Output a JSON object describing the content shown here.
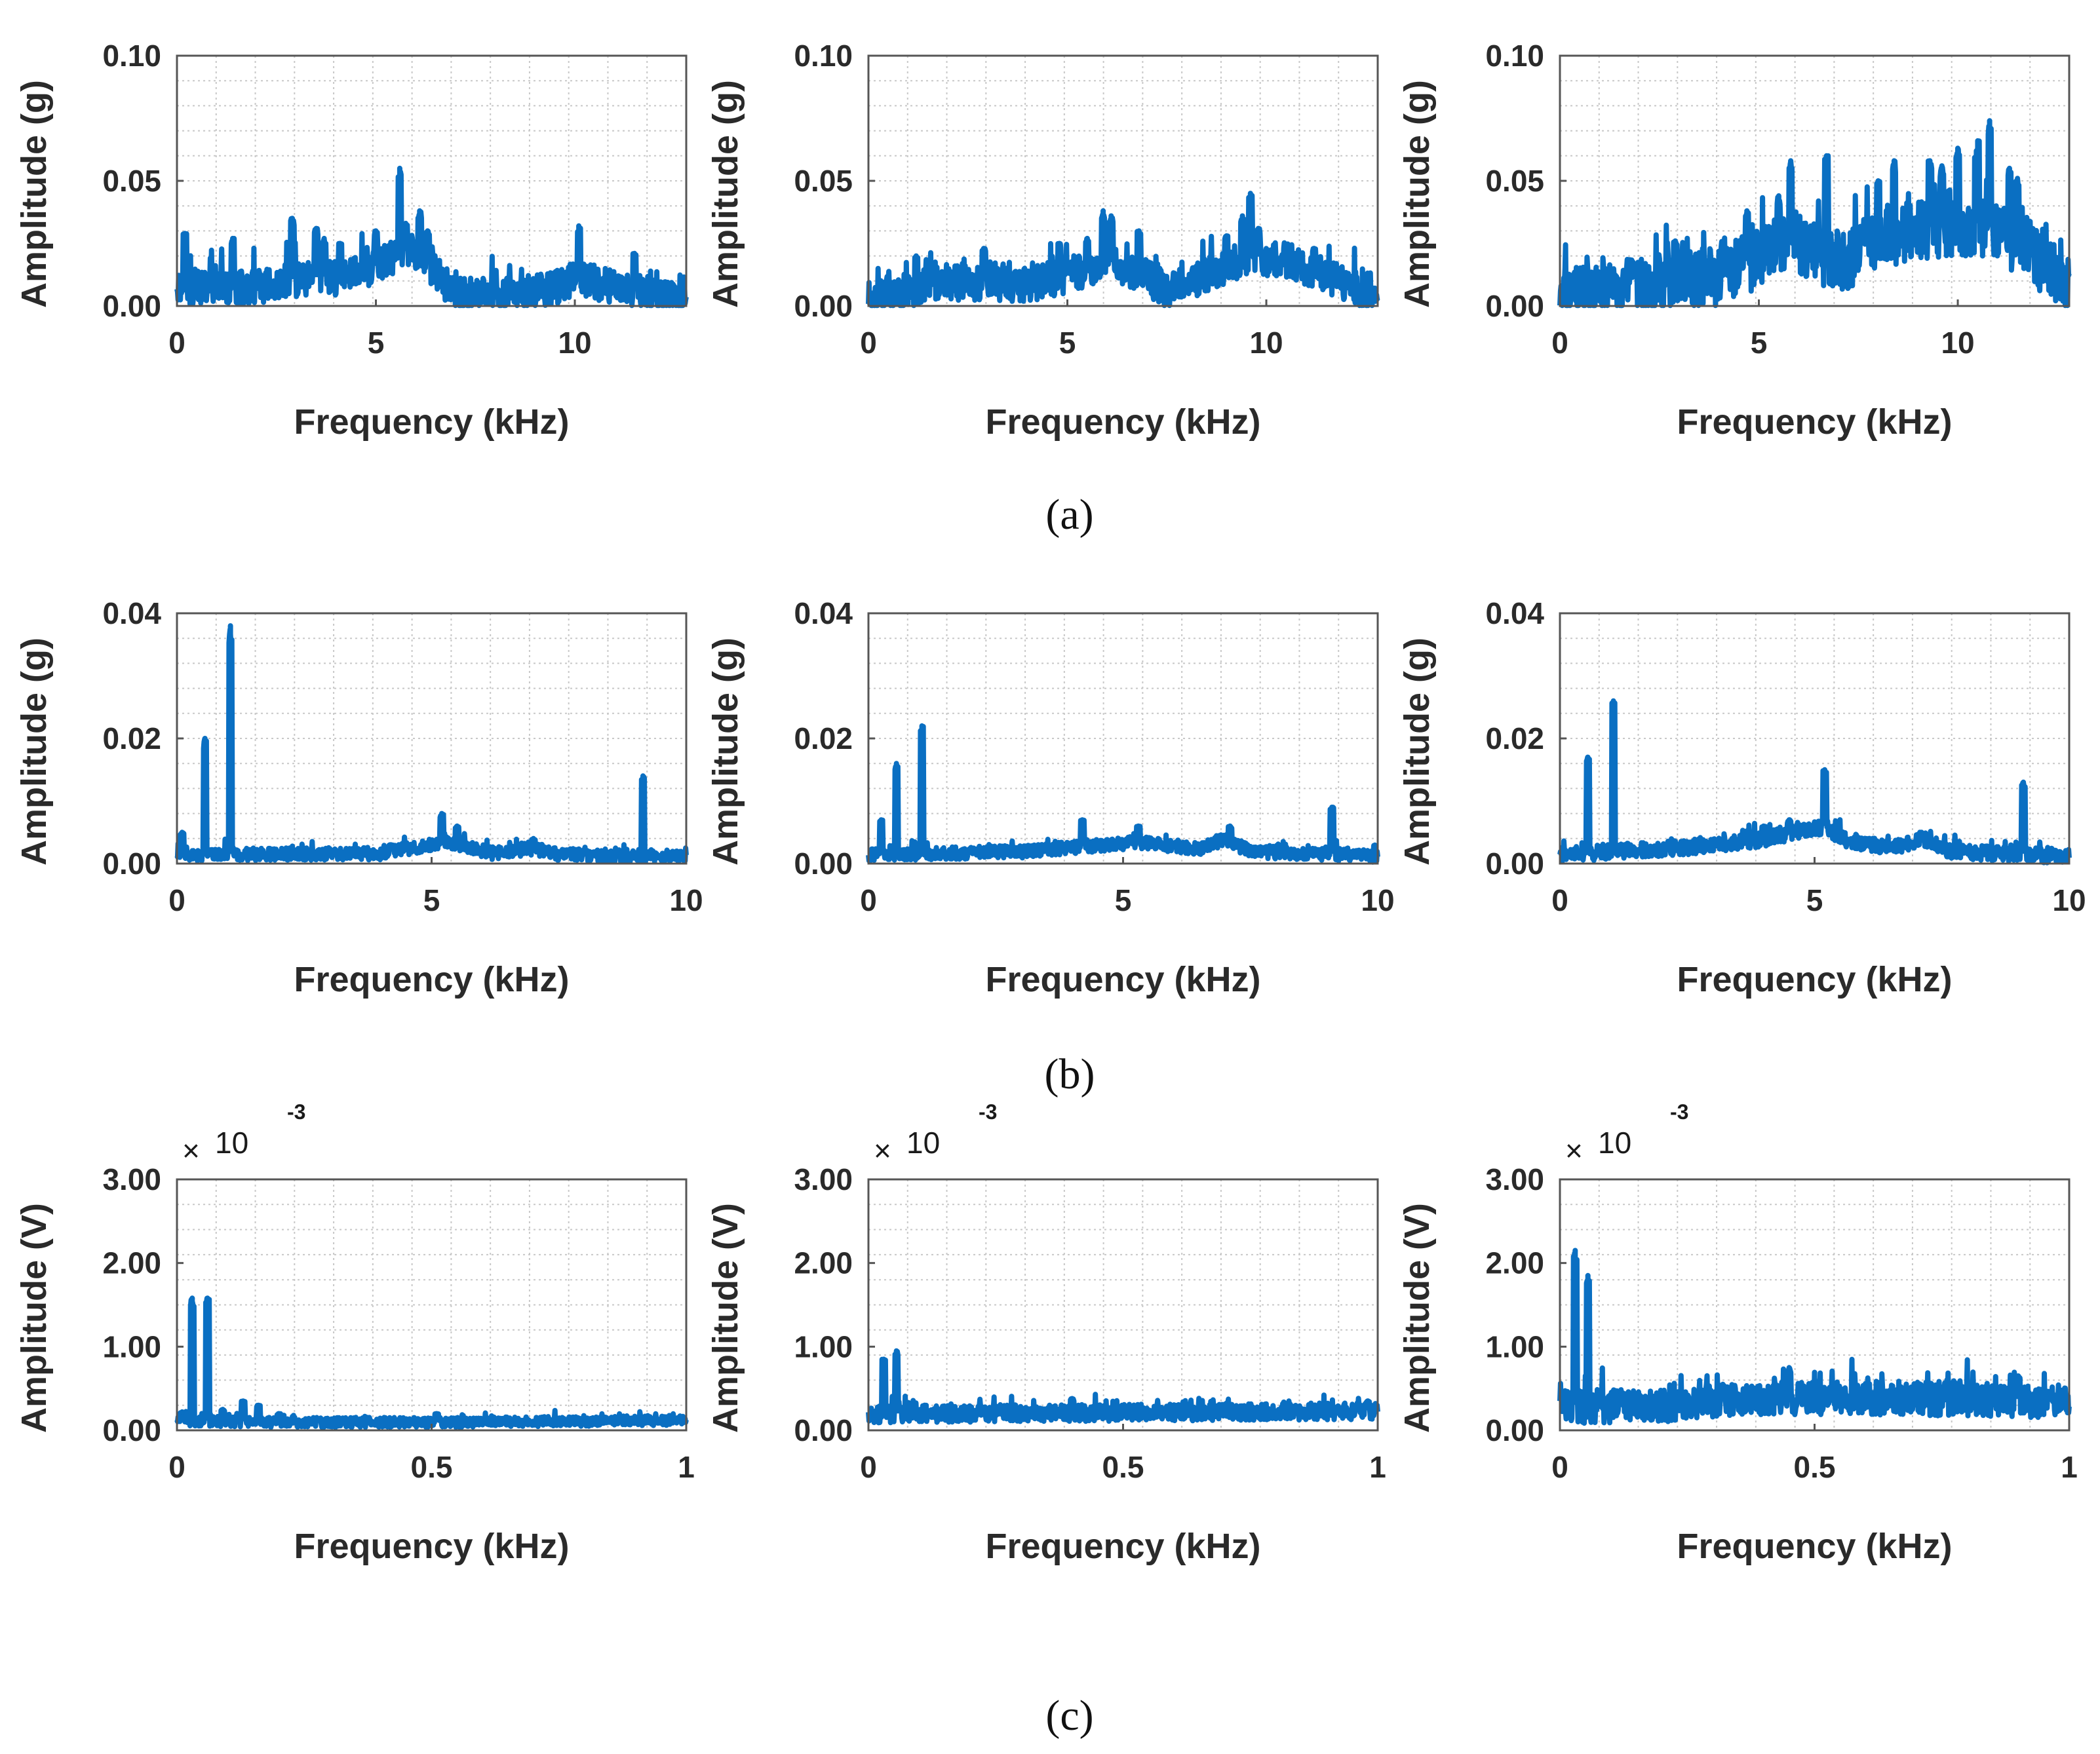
{
  "figure": {
    "panel_labels": [
      "(a)",
      "(b)",
      "(c)"
    ],
    "line_color": "#0a6fc2",
    "grid_color": "#c8c8c8",
    "axis_color": "#555555"
  },
  "chart_data": [
    {
      "id": "a1",
      "row": 0,
      "col": 0,
      "type": "line",
      "xlabel": "Frequency (kHz)",
      "ylabel": "Amplitude (g)",
      "xlim": [
        0,
        12.8
      ],
      "ylim": [
        0,
        0.1
      ],
      "xticks": [
        0,
        5,
        10
      ],
      "xtick_labels": [
        "0",
        "5",
        "10"
      ],
      "yticks": [
        0,
        0.05,
        0.1
      ],
      "ytick_labels": [
        "0.00",
        "0.05",
        "0.10"
      ],
      "baseline": [
        [
          0,
          0.008
        ],
        [
          2,
          0.008
        ],
        [
          3,
          0.011
        ],
        [
          4,
          0.012
        ],
        [
          5,
          0.016
        ],
        [
          5.6,
          0.022
        ],
        [
          6,
          0.022
        ],
        [
          6.6,
          0.012
        ],
        [
          7,
          0.005
        ],
        [
          8.5,
          0.005
        ],
        [
          9.5,
          0.008
        ],
        [
          10,
          0.012
        ],
        [
          10.5,
          0.01
        ],
        [
          11.5,
          0.007
        ],
        [
          12.3,
          0.004
        ],
        [
          12.8,
          0.003
        ]
      ],
      "noise": 0.007,
      "peaks": [
        [
          0.2,
          0.029
        ],
        [
          1.4,
          0.027
        ],
        [
          2.9,
          0.035
        ],
        [
          3.5,
          0.031
        ],
        [
          3.7,
          0.027
        ],
        [
          4.1,
          0.025
        ],
        [
          5.0,
          0.03
        ],
        [
          5.6,
          0.055
        ],
        [
          5.75,
          0.033
        ],
        [
          6.1,
          0.038
        ],
        [
          6.3,
          0.03
        ],
        [
          10.1,
          0.032
        ],
        [
          11.5,
          0.021
        ]
      ]
    },
    {
      "id": "a2",
      "row": 0,
      "col": 1,
      "type": "line",
      "xlabel": "Frequency (kHz)",
      "ylabel": "Amplitude (g)",
      "xlim": [
        0,
        12.8
      ],
      "ylim": [
        0,
        0.1
      ],
      "xticks": [
        0,
        5,
        10
      ],
      "xtick_labels": [
        "0",
        "5",
        "10"
      ],
      "yticks": [
        0,
        0.05,
        0.1
      ],
      "ytick_labels": [
        "0.00",
        "0.05",
        "0.10"
      ],
      "baseline": [
        [
          0,
          0.004
        ],
        [
          1,
          0.005
        ],
        [
          1.5,
          0.01
        ],
        [
          3,
          0.01
        ],
        [
          4,
          0.009
        ],
        [
          5,
          0.013
        ],
        [
          6,
          0.018
        ],
        [
          6.8,
          0.014
        ],
        [
          7.5,
          0.007
        ],
        [
          8.5,
          0.013
        ],
        [
          9.5,
          0.02
        ],
        [
          10.5,
          0.019
        ],
        [
          11.5,
          0.013
        ],
        [
          12.3,
          0.007
        ],
        [
          12.8,
          0.004
        ]
      ],
      "noise": 0.007,
      "peaks": [
        [
          1.2,
          0.02
        ],
        [
          2.9,
          0.023
        ],
        [
          4.8,
          0.025
        ],
        [
          5.5,
          0.027
        ],
        [
          5.9,
          0.038
        ],
        [
          6.1,
          0.036
        ],
        [
          6.8,
          0.03
        ],
        [
          9.0,
          0.028
        ],
        [
          9.4,
          0.036
        ],
        [
          9.6,
          0.045
        ],
        [
          9.8,
          0.031
        ],
        [
          11.2,
          0.023
        ]
      ]
    },
    {
      "id": "a3",
      "row": 0,
      "col": 2,
      "type": "line",
      "xlabel": "Frequency (kHz)",
      "ylabel": "Amplitude (g)",
      "xlim": [
        0,
        12.8
      ],
      "ylim": [
        0,
        0.1
      ],
      "xticks": [
        0,
        5,
        10
      ],
      "xtick_labels": [
        "0",
        "5",
        "10"
      ],
      "yticks": [
        0,
        0.05,
        0.1
      ],
      "ytick_labels": [
        "0.00",
        "0.05",
        "0.10"
      ],
      "baseline": [
        [
          0,
          0.004
        ],
        [
          1,
          0.006
        ],
        [
          2.5,
          0.01
        ],
        [
          4,
          0.013
        ],
        [
          5,
          0.02
        ],
        [
          5.8,
          0.028
        ],
        [
          6.5,
          0.022
        ],
        [
          7.2,
          0.018
        ],
        [
          8,
          0.028
        ],
        [
          9,
          0.032
        ],
        [
          10,
          0.033
        ],
        [
          10.8,
          0.033
        ],
        [
          11.5,
          0.026
        ],
        [
          12.3,
          0.015
        ],
        [
          12.8,
          0.01
        ]
      ],
      "noise": 0.012,
      "peaks": [
        [
          2.9,
          0.026
        ],
        [
          4.7,
          0.038
        ],
        [
          5.5,
          0.044
        ],
        [
          5.8,
          0.058
        ],
        [
          6.7,
          0.06
        ],
        [
          8.0,
          0.05
        ],
        [
          8.4,
          0.058
        ],
        [
          9.3,
          0.058
        ],
        [
          9.6,
          0.056
        ],
        [
          10.0,
          0.063
        ],
        [
          10.5,
          0.066
        ],
        [
          10.8,
          0.074
        ],
        [
          11.3,
          0.055
        ],
        [
          11.5,
          0.051
        ]
      ]
    },
    {
      "id": "b1",
      "row": 1,
      "col": 0,
      "type": "line",
      "xlabel": "Frequency (kHz)",
      "ylabel": "Amplitude (g)",
      "xlim": [
        0,
        10
      ],
      "ylim": [
        0,
        0.04
      ],
      "xticks": [
        0,
        5,
        10
      ],
      "xtick_labels": [
        "0",
        "5",
        "10"
      ],
      "yticks": [
        0,
        0.02,
        0.04
      ],
      "ytick_labels": [
        "0.00",
        "0.02",
        "0.04"
      ],
      "baseline": [
        [
          0,
          0.0015
        ],
        [
          4,
          0.0017
        ],
        [
          5.2,
          0.0035
        ],
        [
          5.6,
          0.003
        ],
        [
          6.2,
          0.0017
        ],
        [
          7,
          0.0025
        ],
        [
          7.5,
          0.0015
        ],
        [
          10,
          0.0013
        ]
      ],
      "noise": 0.001,
      "peaks": [
        [
          0.1,
          0.005
        ],
        [
          0.55,
          0.02
        ],
        [
          1.05,
          0.038
        ],
        [
          4.2,
          0.003
        ],
        [
          5.2,
          0.008
        ],
        [
          5.5,
          0.006
        ],
        [
          7.0,
          0.004
        ],
        [
          9.15,
          0.014
        ]
      ]
    },
    {
      "id": "b2",
      "row": 1,
      "col": 1,
      "type": "line",
      "xlabel": "Frequency (kHz)",
      "ylabel": "Amplitude (g)",
      "xlim": [
        0,
        10
      ],
      "ylim": [
        0,
        0.04
      ],
      "xticks": [
        0,
        5,
        10
      ],
      "xtick_labels": [
        "0",
        "5",
        "10"
      ],
      "yticks": [
        0,
        0.02,
        0.04
      ],
      "ytick_labels": [
        "0.00",
        "0.02",
        "0.04"
      ],
      "baseline": [
        [
          0,
          0.0015
        ],
        [
          3,
          0.002
        ],
        [
          5.3,
          0.0035
        ],
        [
          6.5,
          0.0025
        ],
        [
          7.0,
          0.004
        ],
        [
          7.5,
          0.002
        ],
        [
          10,
          0.0013
        ]
      ],
      "noise": 0.001,
      "peaks": [
        [
          0.25,
          0.007
        ],
        [
          0.55,
          0.016
        ],
        [
          1.05,
          0.022
        ],
        [
          4.2,
          0.007
        ],
        [
          5.3,
          0.006
        ],
        [
          7.1,
          0.006
        ],
        [
          9.1,
          0.009
        ]
      ]
    },
    {
      "id": "b3",
      "row": 1,
      "col": 2,
      "type": "line",
      "xlabel": "Frequency (kHz)",
      "ylabel": "Amplitude (g)",
      "xlim": [
        0,
        10
      ],
      "ylim": [
        0,
        0.04
      ],
      "xticks": [
        0,
        5,
        10
      ],
      "xtick_labels": [
        "0",
        "5",
        "10"
      ],
      "yticks": [
        0,
        0.02,
        0.04
      ],
      "ytick_labels": [
        "0.00",
        "0.02",
        "0.04"
      ],
      "baseline": [
        [
          0,
          0.0015
        ],
        [
          3,
          0.003
        ],
        [
          4,
          0.004
        ],
        [
          5.2,
          0.006
        ],
        [
          5.6,
          0.004
        ],
        [
          6.5,
          0.0025
        ],
        [
          7.2,
          0.004
        ],
        [
          7.7,
          0.002
        ],
        [
          10,
          0.0013
        ]
      ],
      "noise": 0.0012,
      "peaks": [
        [
          0.55,
          0.017
        ],
        [
          1.05,
          0.026
        ],
        [
          4.0,
          0.006
        ],
        [
          4.5,
          0.007
        ],
        [
          5.2,
          0.015
        ],
        [
          7.1,
          0.005
        ],
        [
          9.1,
          0.013
        ]
      ]
    },
    {
      "id": "c1",
      "row": 2,
      "col": 0,
      "type": "line",
      "xlabel": "Frequency (kHz)",
      "ylabel": "Amplitude (V)",
      "xlim": [
        0,
        1
      ],
      "ylim": [
        0,
        3.0
      ],
      "xticks": [
        0,
        0.5,
        1
      ],
      "xtick_labels": [
        "0",
        "0.5",
        "1"
      ],
      "yticks": [
        0,
        1,
        2,
        3
      ],
      "ytick_labels": [
        "0.00",
        "1.00",
        "2.00",
        "3.00"
      ],
      "exponent_label": [
        "×",
        "10",
        "-3"
      ],
      "baseline": [
        [
          0,
          0.12
        ],
        [
          0.2,
          0.1
        ],
        [
          0.5,
          0.1
        ],
        [
          0.9,
          0.12
        ],
        [
          1,
          0.13
        ]
      ],
      "noise": 0.06,
      "peaks": [
        [
          0.01,
          0.22
        ],
        [
          0.03,
          1.58
        ],
        [
          0.06,
          1.58
        ],
        [
          0.09,
          0.25
        ],
        [
          0.13,
          0.35
        ],
        [
          0.16,
          0.3
        ],
        [
          0.2,
          0.2
        ],
        [
          0.51,
          0.2
        ]
      ]
    },
    {
      "id": "c2",
      "row": 2,
      "col": 1,
      "type": "line",
      "xlabel": "Frequency (kHz)",
      "ylabel": "Amplitude (V)",
      "xlim": [
        0,
        1
      ],
      "ylim": [
        0,
        3.0
      ],
      "xticks": [
        0,
        0.5,
        1
      ],
      "xtick_labels": [
        "0",
        "0.5",
        "1"
      ],
      "yticks": [
        0,
        1,
        2,
        3
      ],
      "ytick_labels": [
        "0.00",
        "1.00",
        "2.00",
        "3.00"
      ],
      "exponent_label": [
        "×",
        "10",
        "-3"
      ],
      "baseline": [
        [
          0,
          0.2
        ],
        [
          0.5,
          0.22
        ],
        [
          1,
          0.24
        ]
      ],
      "noise": 0.1,
      "peaks": [
        [
          0.03,
          0.85
        ],
        [
          0.055,
          0.95
        ],
        [
          0.11,
          0.3
        ],
        [
          0.4,
          0.38
        ],
        [
          0.98,
          0.35
        ]
      ]
    },
    {
      "id": "c3",
      "row": 2,
      "col": 2,
      "type": "line",
      "xlabel": "Frequency (kHz)",
      "ylabel": "Amplitude (V)",
      "xlim": [
        0,
        1
      ],
      "ylim": [
        0,
        3.0
      ],
      "xticks": [
        0,
        0.5,
        1
      ],
      "xtick_labels": [
        "0",
        "0.5",
        "1"
      ],
      "yticks": [
        0,
        1,
        2,
        3
      ],
      "ytick_labels": [
        "0.00",
        "1.00",
        "2.00",
        "3.00"
      ],
      "exponent_label": [
        "×",
        "10",
        "-3"
      ],
      "baseline": [
        [
          0,
          0.3
        ],
        [
          0.2,
          0.32
        ],
        [
          0.4,
          0.4
        ],
        [
          0.7,
          0.4
        ],
        [
          1,
          0.36
        ]
      ],
      "noise": 0.2,
      "peaks": [
        [
          0.03,
          2.15
        ],
        [
          0.055,
          1.85
        ],
        [
          0.12,
          0.45
        ],
        [
          0.32,
          0.55
        ],
        [
          0.45,
          0.75
        ],
        [
          0.9,
          0.65
        ]
      ]
    }
  ]
}
